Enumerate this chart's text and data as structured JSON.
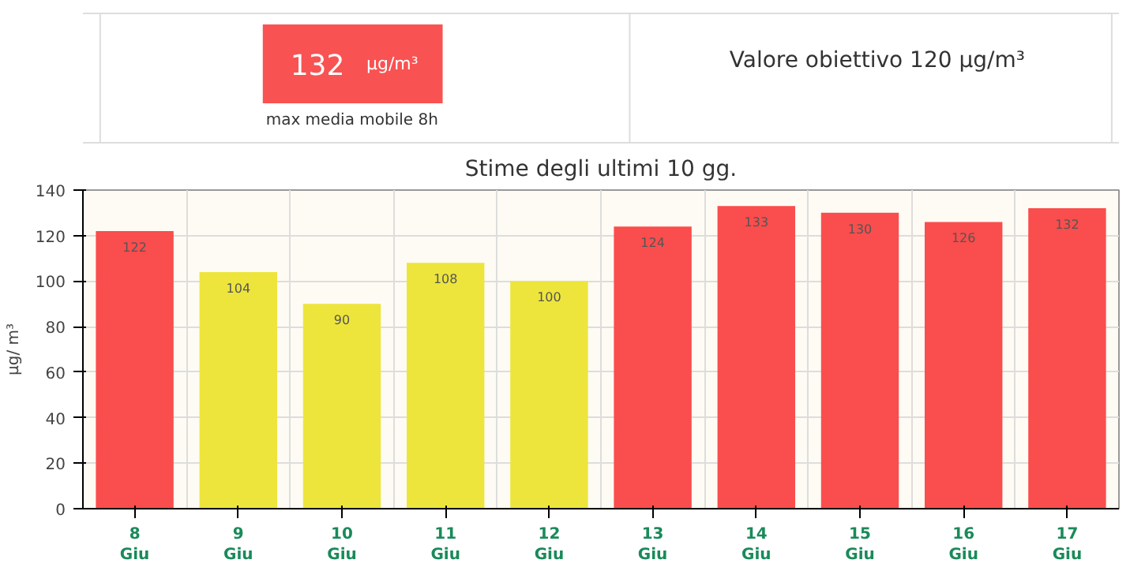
{
  "chart_data": [
    {
      "type": "other",
      "annotations": [
        "132",
        "µg/m³",
        "max media mobile 8h",
        "Valore obiettivo 120 µg/m³"
      ],
      "color": "#f95252"
    },
    {
      "type": "bar",
      "title": "Stime degli ultimi 10 gg.",
      "ylabel": "µg/ m³",
      "categories": [
        "8\nGiu",
        "9\nGiu",
        "10\nGiu",
        "11\nGiu",
        "12\nGiu",
        "13\nGiu",
        "14\nGiu",
        "15\nGiu",
        "16\nGiu",
        "17\nGiu"
      ],
      "values": [
        122,
        104,
        90,
        108,
        100,
        124,
        133,
        130,
        126,
        132
      ],
      "colors": [
        "#fa4d4d",
        "#ede53c",
        "#ede53c",
        "#ede53c",
        "#ede53c",
        "#fa4d4d",
        "#fa4d4d",
        "#fa4d4d",
        "#fa4d4d",
        "#fa4d4d"
      ],
      "ylim": [
        0,
        140
      ],
      "yticks": [
        0,
        20,
        40,
        60,
        80,
        100,
        120,
        140
      ],
      "grid": true,
      "data_labels": true
    }
  ]
}
